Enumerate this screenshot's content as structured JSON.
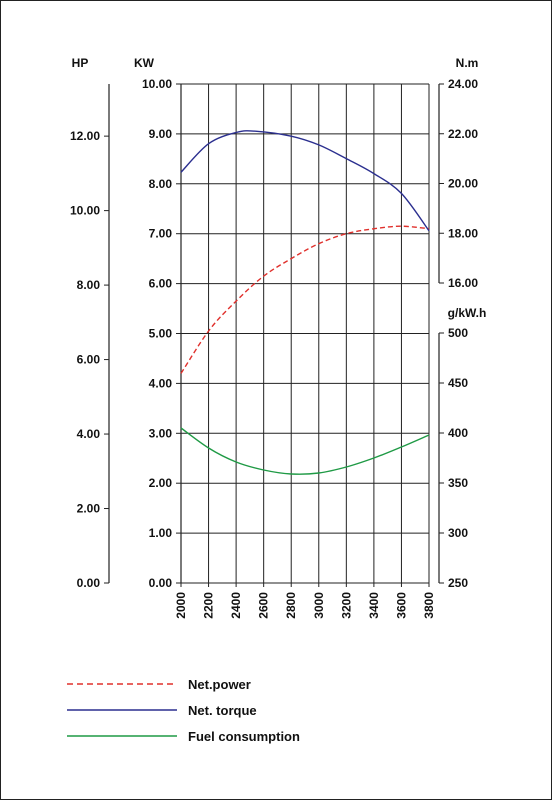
{
  "chart_data": {
    "type": "line",
    "x": [
      2000,
      2200,
      2400,
      2600,
      2800,
      3000,
      3200,
      3400,
      3600,
      3800
    ],
    "x_tick_labels": [
      "2000",
      "2200",
      "2400",
      "2600",
      "2800",
      "3000",
      "3200",
      "3400",
      "3600",
      "3800"
    ],
    "xlim": [
      2000,
      3800
    ],
    "axes": {
      "hp": {
        "unit": "HP",
        "ticks": [
          "0.00",
          "2.00",
          "4.00",
          "6.00",
          "8.00",
          "10.00",
          "12.00"
        ],
        "range": [
          0,
          13.4
        ]
      },
      "kw": {
        "unit": "KW",
        "ticks": [
          "0.00",
          "1.00",
          "2.00",
          "3.00",
          "4.00",
          "5.00",
          "6.00",
          "7.00",
          "8.00",
          "9.00",
          "10.00"
        ],
        "range": [
          0,
          10
        ]
      },
      "torque": {
        "unit": "N.m",
        "ticks": [
          "16.00",
          "18.00",
          "20.00",
          "22.00",
          "24.00"
        ],
        "range": [
          16,
          24
        ]
      },
      "fuel": {
        "unit": "g/kW.h",
        "ticks": [
          "250",
          "300",
          "350",
          "400",
          "450",
          "500"
        ],
        "range": [
          250,
          500
        ]
      }
    },
    "series": [
      {
        "name": "Net.power",
        "axis": "kw",
        "color": "#e0302c",
        "dashed": true,
        "points": [
          [
            2000,
            4.2
          ],
          [
            2200,
            5.05
          ],
          [
            2400,
            5.65
          ],
          [
            2600,
            6.15
          ],
          [
            2800,
            6.5
          ],
          [
            3000,
            6.8
          ],
          [
            3200,
            7.0
          ],
          [
            3400,
            7.1
          ],
          [
            3600,
            7.15
          ],
          [
            3800,
            7.1
          ]
        ]
      },
      {
        "name": "Net. torque",
        "axis": "torque",
        "color": "#2b2f8f",
        "dashed": false,
        "points": [
          [
            2000,
            20.45
          ],
          [
            2200,
            21.6
          ],
          [
            2400,
            22.05
          ],
          [
            2550,
            22.1
          ],
          [
            2800,
            21.9
          ],
          [
            3000,
            21.55
          ],
          [
            3200,
            21.0
          ],
          [
            3400,
            20.4
          ],
          [
            3600,
            19.6
          ],
          [
            3800,
            18.1
          ]
        ]
      },
      {
        "name": "Fuel consumption",
        "axis": "fuel",
        "color": "#1f9a45",
        "dashed": false,
        "points": [
          [
            2000,
            405
          ],
          [
            2200,
            385
          ],
          [
            2400,
            371
          ],
          [
            2600,
            363
          ],
          [
            2800,
            359
          ],
          [
            3000,
            360
          ],
          [
            3200,
            366
          ],
          [
            3400,
            375
          ],
          [
            3600,
            386
          ],
          [
            3800,
            398
          ]
        ]
      }
    ],
    "grid": true,
    "legend_position": "bottom"
  }
}
